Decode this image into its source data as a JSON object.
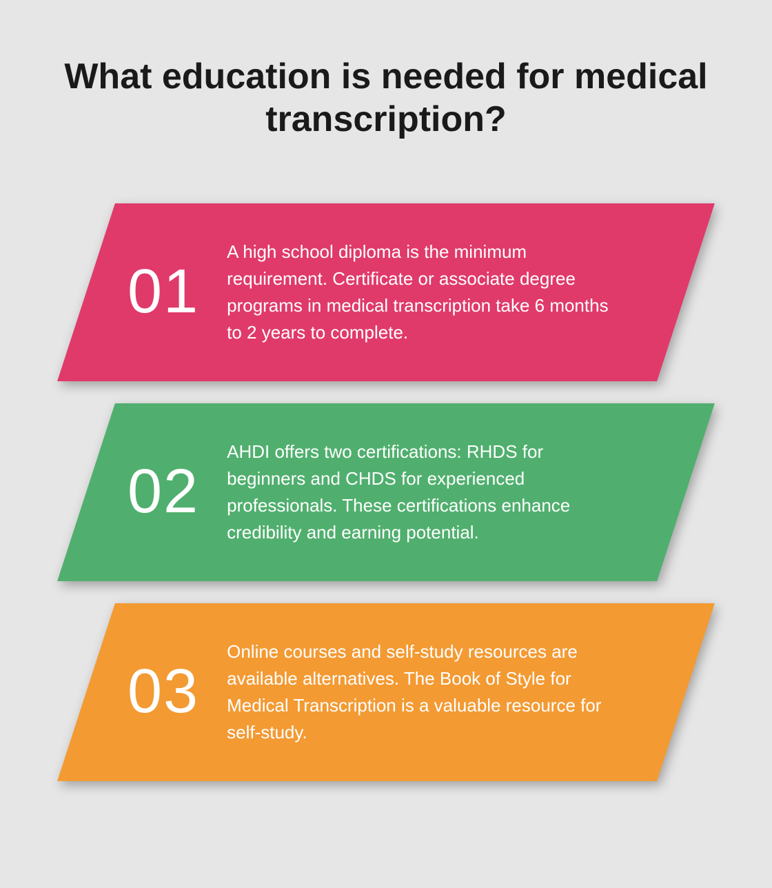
{
  "title": "What education is needed for medical transcription?",
  "title_fontsize": 52,
  "title_color": "#1a1a1a",
  "background_color": "#e6e6e6",
  "number_fontsize": 90,
  "description_fontsize": 26,
  "text_color": "#ffffff",
  "items": [
    {
      "number": "01",
      "description": "A high school diploma is the minimum requirement. Certificate or associate degree programs in medical transcription take 6 months to 2 years to complete.",
      "color": "#e03a6a"
    },
    {
      "number": "02",
      "description": "AHDI offers two certifications: RHDS for beginners and CHDS for experienced professionals. These certifications enhance credibility and earning potential.",
      "color": "#50af6e"
    },
    {
      "number": "03",
      "description": "Online courses and self-study resources are available alternatives. The Book of Style for Medical Transcription is a valuable resource for self-study.",
      "color": "#f39a33"
    }
  ]
}
